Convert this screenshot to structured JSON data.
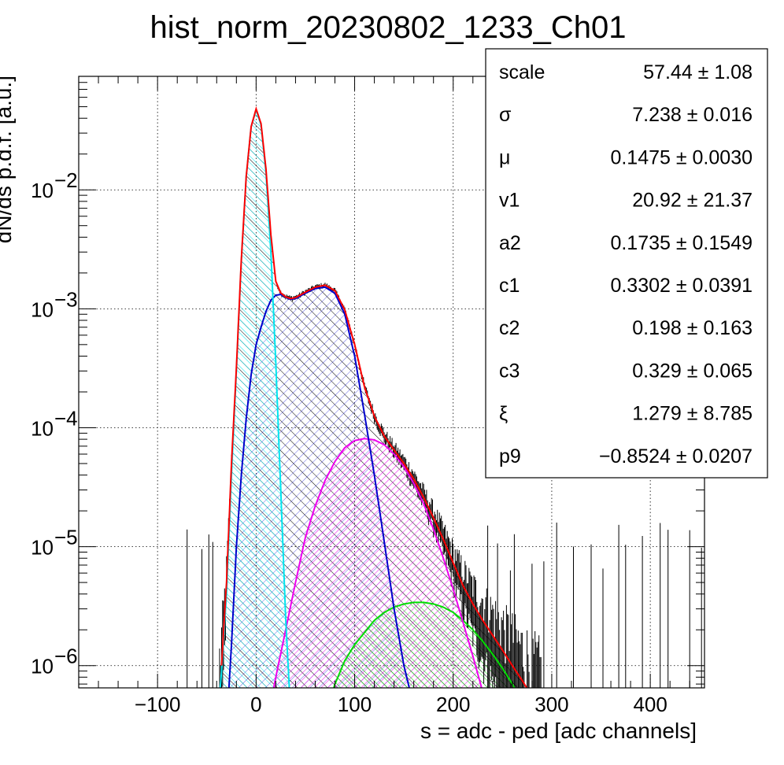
{
  "chart_data": {
    "type": "histogram_with_fit",
    "title": "hist_norm_20230802_1233_Ch01",
    "xlabel": "s = adc - ped [adc channels]",
    "ylabel": "dN/ds p.d.f. [a.u.]",
    "xlim": [
      -180,
      455
    ],
    "ylim": [
      6.5e-07,
      0.09
    ],
    "yscale": "log",
    "grid": true,
    "x_ticks": [
      -100,
      0,
      100,
      200,
      300,
      400
    ],
    "x_tick_labels": [
      "−100",
      "0",
      "100",
      "200",
      "300",
      "400"
    ],
    "y_ticks": [
      {
        "value": 1e-06,
        "base": "10",
        "exp": "−6"
      },
      {
        "value": 1e-05,
        "base": "10",
        "exp": "−5"
      },
      {
        "value": 0.0001,
        "base": "10",
        "exp": "−4"
      },
      {
        "value": 0.001,
        "base": "10",
        "exp": "−3"
      },
      {
        "value": 0.01,
        "base": "10",
        "exp": "−2"
      }
    ],
    "colors": {
      "data": "#000000",
      "total_fit": "#ff0000",
      "pedestal": "#00e5ee",
      "one_pe": "#0000cc",
      "two_pe": "#ee00ee",
      "three_pe": "#00dd00"
    },
    "components": [
      {
        "color_key": "pedestal",
        "x": [
          -40,
          -35,
          -30,
          -25,
          -20,
          -15,
          -10,
          -5,
          0,
          5,
          10,
          15,
          20,
          25,
          30,
          35
        ],
        "y": [
          3e-07,
          9e-07,
          4e-06,
          4e-05,
          0.0003,
          0.0025,
          0.013,
          0.034,
          0.047,
          0.035,
          0.014,
          0.003,
          0.00035,
          3e-05,
          2.5e-06,
          4e-07
        ]
      },
      {
        "color_key": "one_pe",
        "x": [
          -30,
          -25,
          -20,
          -15,
          -10,
          -5,
          0,
          5,
          10,
          15,
          20,
          25,
          30,
          35,
          40,
          50,
          60,
          70,
          80,
          90,
          100,
          110,
          120,
          130,
          140,
          150,
          160,
          170,
          180
        ],
        "y": [
          3e-07,
          1.5e-06,
          1e-05,
          4e-05,
          0.00012,
          0.00028,
          0.0005,
          0.0007,
          0.00095,
          0.00118,
          0.0013,
          0.00132,
          0.00125,
          0.0012,
          0.00122,
          0.00135,
          0.00148,
          0.00152,
          0.00135,
          0.0009,
          0.0004,
          0.00013,
          4e-05,
          1.1e-05,
          3e-06,
          1e-06,
          4.5e-07,
          2e-07,
          1e-07
        ]
      },
      {
        "color_key": "two_pe",
        "x": [
          10,
          20,
          30,
          40,
          50,
          60,
          70,
          80,
          90,
          100,
          110,
          120,
          130,
          140,
          150,
          160,
          170,
          180,
          190,
          200,
          210,
          220,
          230,
          240,
          250,
          260
        ],
        "y": [
          3e-07,
          8e-07,
          2e-06,
          5e-06,
          1.2e-05,
          2.2e-05,
          3.6e-05,
          5.2e-05,
          6.8e-05,
          7.8e-05,
          8.1e-05,
          7.9e-05,
          7.2e-05,
          6e-05,
          4.7e-05,
          3.4e-05,
          2.3e-05,
          1.4e-05,
          8e-06,
          4.4e-06,
          2.3e-06,
          1.2e-06,
          6e-07,
          3e-07,
          1.5e-07,
          7e-08
        ]
      },
      {
        "color_key": "three_pe",
        "x": [
          60,
          70,
          80,
          90,
          100,
          110,
          120,
          130,
          140,
          150,
          160,
          170,
          180,
          190,
          200,
          210,
          220,
          230,
          240,
          250,
          260,
          270,
          280
        ],
        "y": [
          2e-07,
          4e-07,
          7e-07,
          1.1e-06,
          1.5e-06,
          1.9e-06,
          2.4e-06,
          2.8e-06,
          3.1e-06,
          3.3e-06,
          3.4e-06,
          3.4e-06,
          3.3e-06,
          3.1e-06,
          2.8e-06,
          2.4e-06,
          2e-06,
          1.6e-06,
          1.25e-06,
          9.5e-07,
          7e-07,
          5e-07,
          3.5e-07
        ]
      },
      {
        "color_key": "total_fit",
        "x": [
          -35,
          -30,
          -25,
          -20,
          -15,
          -10,
          -5,
          0,
          5,
          10,
          15,
          20,
          25,
          30,
          35,
          40,
          50,
          60,
          70,
          80,
          90,
          100,
          110,
          120,
          130,
          140,
          150,
          160,
          170,
          180,
          190,
          200,
          210,
          220,
          230,
          240,
          250,
          260,
          270,
          280
        ],
        "y": [
          1e-06,
          5e-06,
          5e-05,
          0.00032,
          0.0026,
          0.013,
          0.034,
          0.048,
          0.036,
          0.015,
          0.0042,
          0.0017,
          0.00136,
          0.00126,
          0.00122,
          0.00124,
          0.00138,
          0.00152,
          0.00158,
          0.00142,
          0.00098,
          0.0005,
          0.00022,
          0.000125,
          8.5e-05,
          6.5e-05,
          5e-05,
          3.7e-05,
          2.6e-05,
          1.75e-05,
          1.15e-05,
          7.3e-06,
          4.7e-06,
          3.3e-06,
          2.4e-06,
          1.8e-06,
          1.35e-06,
          1e-06,
          7.5e-07,
          5.5e-07
        ]
      }
    ],
    "stats_box": {
      "rows": [
        {
          "name": "scale",
          "value": "57.44 ± 1.08"
        },
        {
          "name": "σ",
          "value": "7.238 ± 0.016"
        },
        {
          "name": "μ",
          "value": "0.1475 ± 0.0030"
        },
        {
          "name": "v1",
          "value": "20.92 ± 21.37"
        },
        {
          "name": "a2",
          "value": "0.1735 ± 0.1549"
        },
        {
          "name": "c1",
          "value": "0.3302 ± 0.0391"
        },
        {
          "name": "c2",
          "value": "0.198 ± 0.163"
        },
        {
          "name": "c3",
          "value": "0.329 ± 0.065"
        },
        {
          "name": "ξ",
          "value": "1.279 ± 8.785"
        },
        {
          "name": "p9",
          "value": "−0.8524 ± 0.0207"
        }
      ]
    }
  }
}
